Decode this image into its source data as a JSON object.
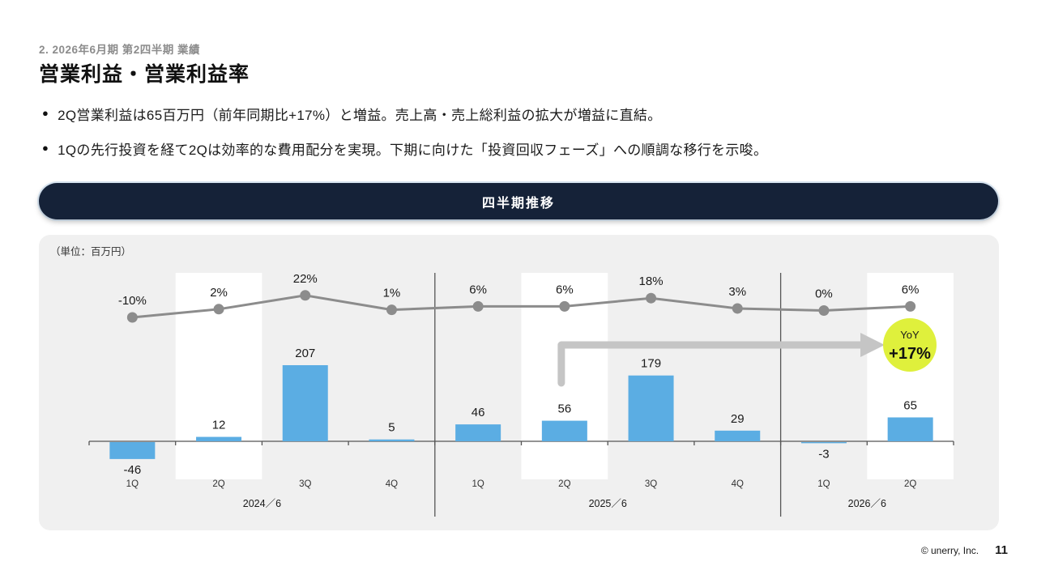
{
  "page": {
    "breadcrumb": "2. 2026年6月期 第2四半期 業績",
    "title": "営業利益・営業利益率",
    "bullets": [
      {
        "marker": "●",
        "text": "2Q営業利益は65百万円（前年同期比+17%）と増益。売上高・売上総利益の拡大が増益に直結。"
      },
      {
        "marker": "●",
        "text": "1Qの先行投資を経て2Qは効率的な費用配分を実現。下期に向けた「投資回収フェーズ」への順調な移行を示唆。"
      }
    ],
    "section_banner": "四半期推移",
    "footer": {
      "copyright": "© unerry, Inc.",
      "page_number": "11"
    }
  },
  "chart_data": {
    "type": "bar",
    "subtype": "bar-line-combo",
    "title": "四半期推移",
    "unit_label": "（単位：百万円）",
    "categories": [
      "1Q",
      "2Q",
      "3Q",
      "4Q",
      "1Q",
      "2Q",
      "3Q",
      "4Q",
      "1Q",
      "2Q"
    ],
    "groups": [
      {
        "label": "2024／6",
        "count": 4
      },
      {
        "label": "2025／6",
        "count": 4
      },
      {
        "label": "2026／6",
        "count": 2
      }
    ],
    "series": [
      {
        "name": "営業利益",
        "type": "bar",
        "values": [
          -46,
          12,
          207,
          5,
          46,
          56,
          179,
          29,
          -3,
          65
        ]
      },
      {
        "name": "営業利益率",
        "type": "line",
        "values_pct": [
          -10,
          2,
          22,
          1,
          6,
          6,
          18,
          3,
          0,
          6
        ],
        "labels": [
          "-10%",
          "2%",
          "22%",
          "1%",
          "6%",
          "6%",
          "18%",
          "3%",
          "0%",
          "6%"
        ]
      }
    ],
    "highlight_band_indices": [
      1,
      5,
      9
    ],
    "annotation": {
      "label": "YoY",
      "value": "+17%",
      "from_index": 5,
      "to_index": 9,
      "color": "#DFF03C"
    },
    "colors": {
      "bar": "#5BADE3",
      "line": "#8C8C8C",
      "arrow": "#C5C5C5",
      "axis": "#555555",
      "band": "#FFFFFF"
    },
    "legend": "none",
    "grid": false
  }
}
